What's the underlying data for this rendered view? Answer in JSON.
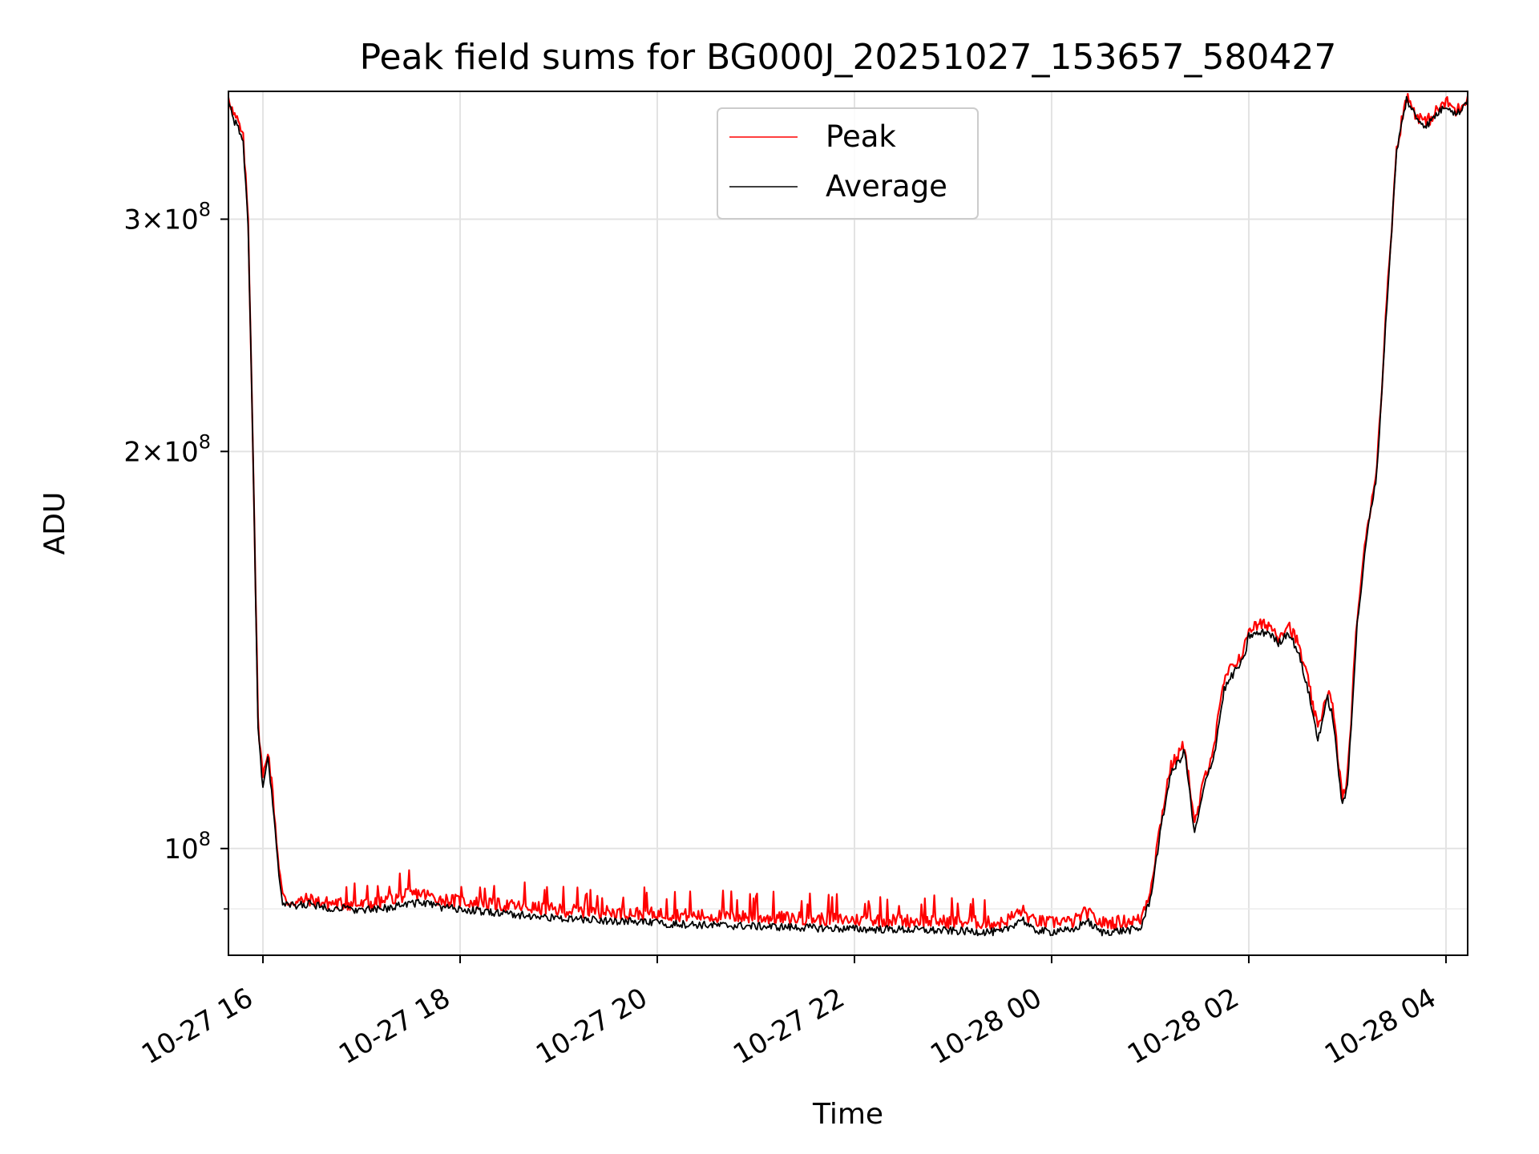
{
  "chart_data": {
    "type": "line",
    "title": "Peak field sums for BG000J_20251027_153657_580427",
    "xlabel": "Time",
    "ylabel": "ADU",
    "yscale": "log",
    "ylim": [
      83000000,
      375000000
    ],
    "xlim_hours": [
      15.65,
      28.22
    ],
    "grid": true,
    "legend_position": "upper center",
    "x_ticks": [
      {
        "hour": 16,
        "label": "10-27 16"
      },
      {
        "hour": 18,
        "label": "10-27 18"
      },
      {
        "hour": 20,
        "label": "10-27 20"
      },
      {
        "hour": 22,
        "label": "10-27 22"
      },
      {
        "hour": 24,
        "label": "10-28 00"
      },
      {
        "hour": 26,
        "label": "10-28 02"
      },
      {
        "hour": 28,
        "label": "10-28 04"
      }
    ],
    "y_ticks": [
      {
        "value": 100000000,
        "mantissa": "",
        "exponent": "8"
      },
      {
        "value": 200000000,
        "mantissa": "2",
        "exponent": "8"
      },
      {
        "value": 300000000,
        "mantissa": "3",
        "exponent": "8"
      }
    ],
    "y_minor_ticks": [
      90000000
    ],
    "series": [
      {
        "name": "Peak",
        "color": "#ff0000",
        "hours": [
          15.65,
          15.7,
          15.75,
          15.8,
          15.85,
          15.9,
          15.95,
          16.0,
          16.05,
          16.1,
          16.15,
          16.2,
          16.25,
          16.3,
          16.35,
          16.4,
          16.45,
          16.5,
          16.6,
          16.8,
          17.0,
          17.2,
          17.4,
          17.6,
          17.8,
          18.0,
          18.5,
          19.0,
          19.5,
          20.0,
          20.5,
          21.0,
          21.5,
          22.0,
          22.5,
          23.0,
          23.5,
          23.7,
          23.8,
          24.0,
          24.1,
          24.2,
          24.35,
          24.5,
          24.7,
          24.9,
          25.0,
          25.1,
          25.2,
          25.35,
          25.45,
          25.55,
          25.65,
          25.75,
          25.85,
          25.95,
          26.0,
          26.2,
          26.3,
          26.4,
          26.5,
          26.6,
          26.7,
          26.8,
          26.85,
          26.95,
          27.0,
          27.1,
          27.2,
          27.3,
          27.4,
          27.5,
          27.6,
          27.7,
          27.8,
          27.9,
          28.0,
          28.05,
          28.1,
          28.15,
          28.22
        ],
        "values": [
          373000000,
          360000000,
          355000000,
          345000000,
          300000000,
          200000000,
          125000000,
          113000000,
          119000000,
          110000000,
          99000000,
          92000000,
          91000000,
          91200000,
          91000000,
          91300000,
          91500000,
          91400000,
          91000000,
          90800000,
          90600000,
          91000000,
          92000000,
          92500000,
          91500000,
          91200000,
          90500000,
          89800000,
          89500000,
          89200000,
          88900000,
          88700000,
          88500000,
          88300000,
          88200000,
          88000000,
          87800000,
          89800000,
          88200000,
          87800000,
          88300000,
          87800000,
          89500000,
          87800000,
          88000000,
          88300000,
          93000000,
          104000000,
          115000000,
          120000000,
          104000000,
          113000000,
          120000000,
          134000000,
          138000000,
          141000000,
          147000000,
          148000000,
          145000000,
          148000000,
          143000000,
          134000000,
          123000000,
          132000000,
          128000000,
          109000000,
          113000000,
          150000000,
          175000000,
          195000000,
          260000000,
          340000000,
          372000000,
          360000000,
          355000000,
          362000000,
          368000000,
          366000000,
          362000000,
          365000000,
          372000000
        ]
      },
      {
        "name": "Average",
        "color": "#000000",
        "hours": [
          15.65,
          15.7,
          15.75,
          15.8,
          15.85,
          15.9,
          15.95,
          16.0,
          16.05,
          16.1,
          16.15,
          16.2,
          16.25,
          16.3,
          16.35,
          16.4,
          16.45,
          16.5,
          16.6,
          16.8,
          17.0,
          17.2,
          17.4,
          17.6,
          17.8,
          18.0,
          18.5,
          19.0,
          19.5,
          20.0,
          20.5,
          21.0,
          21.5,
          22.0,
          22.5,
          23.0,
          23.5,
          23.7,
          23.8,
          24.0,
          24.1,
          24.2,
          24.35,
          24.5,
          24.7,
          24.9,
          25.0,
          25.1,
          25.2,
          25.35,
          25.45,
          25.55,
          25.65,
          25.75,
          25.85,
          25.95,
          26.0,
          26.2,
          26.3,
          26.4,
          26.5,
          26.6,
          26.7,
          26.8,
          26.85,
          26.95,
          27.0,
          27.1,
          27.2,
          27.3,
          27.4,
          27.5,
          27.6,
          27.7,
          27.8,
          27.9,
          28.0,
          28.05,
          28.1,
          28.15,
          28.22
        ],
        "values": [
          370000000,
          357000000,
          352000000,
          342000000,
          297000000,
          198000000,
          123000000,
          111000000,
          117000000,
          108000000,
          97500000,
          91000000,
          90500000,
          90600000,
          90400000,
          90700000,
          90800000,
          90700000,
          90300000,
          90100000,
          89800000,
          89900000,
          90700000,
          91000000,
          90300000,
          89900000,
          89200000,
          88500000,
          88200000,
          87800000,
          87500000,
          87300000,
          87100000,
          86900000,
          86800000,
          86600000,
          86400000,
          88500000,
          86800000,
          86400000,
          86900000,
          86400000,
          88200000,
          86400000,
          86600000,
          86900000,
          91500000,
          102500000,
          113500000,
          118500000,
          102500000,
          111500000,
          118000000,
          132000000,
          136000000,
          139000000,
          145000000,
          146000000,
          143000000,
          146000000,
          141000000,
          132000000,
          121000000,
          130000000,
          126000000,
          107500000,
          111500000,
          148000000,
          173000000,
          193000000,
          258000000,
          338000000,
          370000000,
          358000000,
          353000000,
          360000000,
          366000000,
          364000000,
          360000000,
          363000000,
          370000000
        ]
      }
    ]
  }
}
